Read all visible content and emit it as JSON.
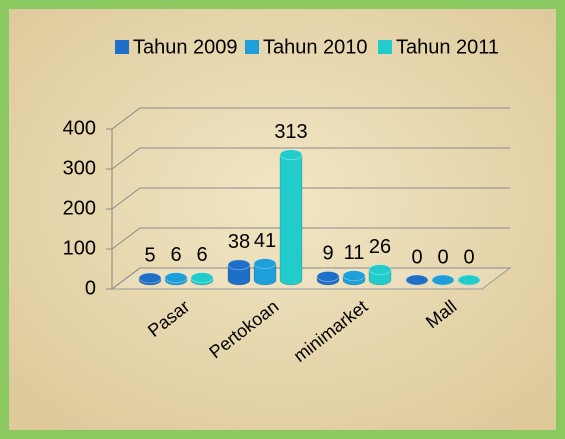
{
  "chart_data": {
    "type": "bar3d",
    "categories": [
      "Pasar",
      "Pertokoan",
      "minimarket",
      "Mall"
    ],
    "series": [
      {
        "name": "Tahun 2009",
        "color": "#1f6ec8",
        "values": [
          5,
          38,
          9,
          0
        ]
      },
      {
        "name": "Tahun 2010",
        "color": "#1e9fd9",
        "values": [
          6,
          41,
          11,
          0
        ]
      },
      {
        "name": "Tahun 2011",
        "color": "#22cccc",
        "values": [
          6,
          313,
          26,
          0
        ]
      }
    ],
    "ylim": [
      0,
      400
    ],
    "yticks": [
      0,
      100,
      200,
      300,
      400
    ],
    "grid": true,
    "legend": "top"
  }
}
